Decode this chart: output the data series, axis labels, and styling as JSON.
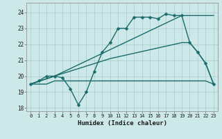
{
  "xlabel": "Humidex (Indice chaleur)",
  "bg_color": "#cde8e8",
  "grid_color": "#b0d0d0",
  "line_color": "#1a6b6b",
  "xlim": [
    -0.5,
    23.5
  ],
  "ylim": [
    17.8,
    24.6
  ],
  "yticks": [
    18,
    19,
    20,
    21,
    22,
    23,
    24
  ],
  "xticks": [
    0,
    1,
    2,
    3,
    4,
    5,
    6,
    7,
    8,
    9,
    10,
    11,
    12,
    13,
    14,
    15,
    16,
    17,
    18,
    19,
    20,
    21,
    22,
    23
  ],
  "series": [
    {
      "x": [
        0,
        1,
        2,
        3,
        4,
        5,
        6,
        7,
        8,
        9,
        10,
        11,
        12,
        13,
        14,
        15,
        16,
        17,
        18,
        19,
        20,
        21,
        22,
        23
      ],
      "y": [
        19.5,
        19.7,
        20.0,
        20.0,
        19.9,
        19.2,
        18.2,
        19.0,
        20.3,
        21.5,
        22.1,
        23.0,
        23.0,
        23.7,
        23.7,
        23.7,
        23.6,
        23.9,
        23.8,
        23.8,
        22.1,
        21.5,
        20.8,
        19.5
      ],
      "marker": true,
      "markersize": 2.5,
      "linewidth": 1.0
    },
    {
      "x": [
        0,
        3,
        19,
        23
      ],
      "y": [
        19.5,
        20.0,
        23.8,
        23.8
      ],
      "marker": false,
      "markersize": 0,
      "linewidth": 1.0
    },
    {
      "x": [
        0,
        3,
        10,
        19,
        20,
        21,
        22,
        23
      ],
      "y": [
        19.5,
        20.0,
        21.1,
        22.1,
        22.1,
        21.5,
        20.8,
        19.5
      ],
      "marker": false,
      "markersize": 0,
      "linewidth": 1.0
    },
    {
      "x": [
        0,
        1,
        2,
        3,
        7,
        8,
        9,
        10,
        14,
        15,
        16,
        17,
        18,
        19,
        21,
        22,
        23
      ],
      "y": [
        19.5,
        19.5,
        19.5,
        19.7,
        19.7,
        19.7,
        19.7,
        19.7,
        19.7,
        19.7,
        19.7,
        19.7,
        19.7,
        19.7,
        19.7,
        19.7,
        19.5
      ],
      "marker": false,
      "markersize": 0,
      "linewidth": 1.0
    }
  ]
}
